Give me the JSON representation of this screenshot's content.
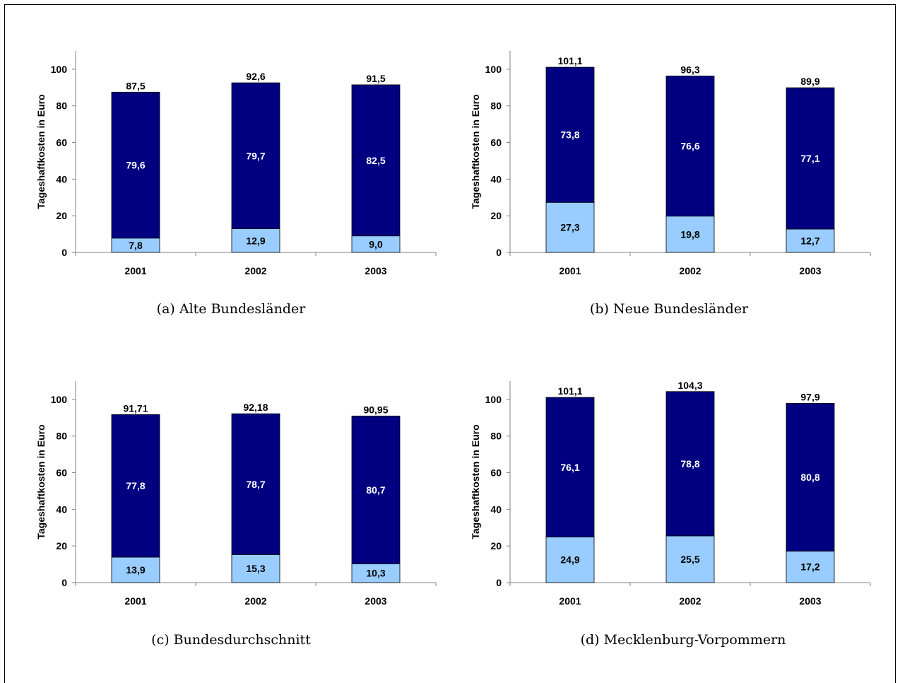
{
  "colors": {
    "lower": "#99ccff",
    "upper": "#000080",
    "axis": "#808080"
  },
  "chart_data": [
    {
      "type": "bar",
      "caption": "(a) Alte Bundesländer",
      "ylabel": "Tageshaftkosten in Euro",
      "ylim": [
        0,
        110
      ],
      "yticks": [
        0,
        20,
        40,
        60,
        80,
        100
      ],
      "categories": [
        "2001",
        "2002",
        "2003"
      ],
      "series": [
        {
          "values": [
            7.8,
            12.9,
            9.0
          ],
          "labels": [
            "7,8",
            "12,9",
            "9,0"
          ]
        },
        {
          "values": [
            79.6,
            79.7,
            82.5
          ],
          "labels": [
            "79,6",
            "79,7",
            "82,5"
          ]
        }
      ],
      "totals": [
        87.5,
        92.6,
        91.5
      ],
      "total_labels": [
        "87,5",
        "92,6",
        "91,5"
      ]
    },
    {
      "type": "bar",
      "caption": "(b) Neue Bundesländer",
      "ylabel": "Tageshaftkosten in Euro",
      "ylim": [
        0,
        110
      ],
      "yticks": [
        0,
        20,
        40,
        60,
        80,
        100
      ],
      "categories": [
        "2001",
        "2002",
        "2003"
      ],
      "series": [
        {
          "values": [
            27.3,
            19.8,
            12.7
          ],
          "labels": [
            "27,3",
            "19,8",
            "12,7"
          ]
        },
        {
          "values": [
            73.8,
            76.6,
            77.1
          ],
          "labels": [
            "73,8",
            "76,6",
            "77,1"
          ]
        }
      ],
      "totals": [
        101.1,
        96.3,
        89.9
      ],
      "total_labels": [
        "101,1",
        "96,3",
        "89,9"
      ]
    },
    {
      "type": "bar",
      "caption": "(c) Bundesdurchschnitt",
      "ylabel": "Tageshaftkosten in Euro",
      "ylim": [
        0,
        110
      ],
      "yticks": [
        0,
        20,
        40,
        60,
        80,
        100
      ],
      "categories": [
        "2001",
        "2002",
        "2003"
      ],
      "series": [
        {
          "values": [
            13.9,
            15.3,
            10.3
          ],
          "labels": [
            "13,9",
            "15,3",
            "10,3"
          ]
        },
        {
          "values": [
            77.8,
            78.7,
            80.7
          ],
          "labels": [
            "77,8",
            "78,7",
            "80,7"
          ]
        }
      ],
      "totals": [
        91.71,
        92.18,
        90.95
      ],
      "total_labels": [
        "91,71",
        "92,18",
        "90,95"
      ]
    },
    {
      "type": "bar",
      "caption": "(d) Mecklenburg-Vorpommern",
      "ylabel": "Tageshaftkosten in Euro",
      "ylim": [
        0,
        110
      ],
      "yticks": [
        0,
        20,
        40,
        60,
        80,
        100
      ],
      "categories": [
        "2001",
        "2002",
        "2003"
      ],
      "series": [
        {
          "values": [
            24.9,
            25.5,
            17.2
          ],
          "labels": [
            "24,9",
            "25,5",
            "17,2"
          ]
        },
        {
          "values": [
            76.1,
            78.8,
            80.8
          ],
          "labels": [
            "76,1",
            "78,8",
            "80,8"
          ]
        }
      ],
      "totals": [
        101.1,
        104.3,
        97.9
      ],
      "total_labels": [
        "101,1",
        "104,3",
        "97,9"
      ]
    }
  ]
}
